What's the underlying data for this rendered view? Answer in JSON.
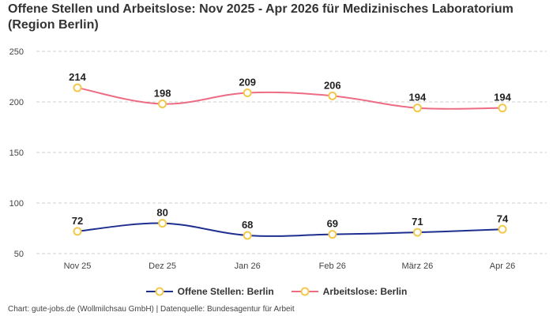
{
  "title": "Offene Stellen und Arbeitslose: Nov 2025 - Apr 2026 für Medizinisches Laboratorium (Region Berlin)",
  "footer": "Chart: gute-jobs.de (Wollmilchsau GmbH) | Datenquelle: Bundesagentur für Arbeit",
  "chart_data": {
    "type": "line",
    "categories": [
      "Nov 25",
      "Dez 25",
      "Jan 26",
      "Feb 26",
      "März 26",
      "Apr 26"
    ],
    "yticks": [
      50,
      100,
      150,
      200,
      250
    ],
    "ylim": [
      50,
      250
    ],
    "grid": "horizontal-dashed",
    "legend": "bottom-center",
    "marker_color": "#f2c94c",
    "series": [
      {
        "name": "Offene Stellen: Berlin",
        "color": "#1f2f8f",
        "values": [
          72,
          80,
          68,
          69,
          71,
          74
        ]
      },
      {
        "name": "Arbeitslose: Berlin",
        "color": "#ee6b84",
        "values": [
          214,
          198,
          209,
          206,
          194,
          194
        ]
      }
    ]
  }
}
